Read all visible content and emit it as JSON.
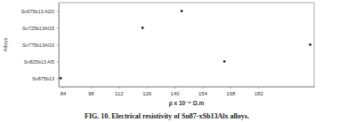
{
  "chart_data": {
    "type": "scatter",
    "orientation": "horizontal",
    "title": "FIG. 10. Electrical resistivity of Sn87-xSb13Alx alloys.",
    "x_label": "ρ x 10⁻⁸ Ω.m",
    "y_label": "Alloys",
    "categories": [
      "Sn675b13 Al20",
      "Sn725b13Al15",
      "Sn775b13Al10",
      "Sn825b13 Al5",
      "Sn875b13"
    ],
    "values": [
      143.6,
      124,
      208,
      165,
      83
    ],
    "xlim": [
      82,
      210
    ],
    "xticks": [
      84,
      98,
      112,
      126,
      140,
      154,
      168,
      182
    ],
    "color": "#000000",
    "marker": "circle",
    "grid": false
  }
}
